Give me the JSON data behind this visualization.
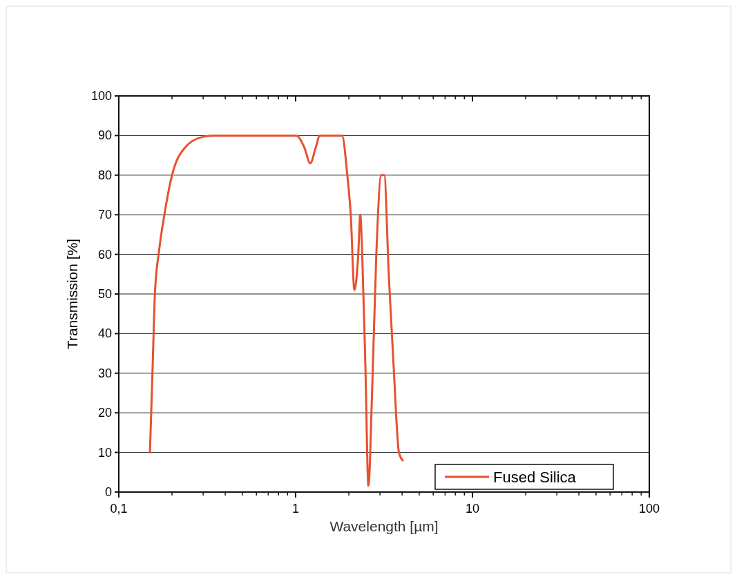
{
  "chart_data": {
    "type": "line",
    "xlabel": "Wavelength [µm]",
    "ylabel": "Transmission [%]",
    "log": "x",
    "grid": "y",
    "legend": "bottom right",
    "line_style": "solid",
    "marker": "none",
    "xlim": [
      0.1,
      100
    ],
    "xticks": [
      {
        "value": 0.1,
        "label": "0,1"
      },
      1,
      10,
      100
    ],
    "ylim": [
      0,
      100
    ],
    "yticks": [
      0,
      10,
      20,
      30,
      40,
      50,
      60,
      70,
      80,
      90,
      100
    ],
    "series": [
      {
        "name": "Fused Silica",
        "color": "#e8502f",
        "x": [
          0.15,
          0.155,
          0.16,
          0.169,
          0.181,
          0.2,
          0.235,
          0.3,
          0.35,
          1.0,
          1.03,
          1.12,
          1.21,
          1.3,
          1.37,
          1.83,
          1.96,
          2.05,
          2.15,
          2.26,
          2.32,
          2.38,
          2.48,
          2.58,
          2.71,
          2.86,
          3.05,
          3.17,
          3.37,
          3.58,
          3.84,
          4.03
        ],
        "values": [
          10,
          30,
          50,
          61,
          70,
          80,
          86.8,
          89.7,
          90,
          90,
          89.8,
          87,
          83,
          87,
          90,
          90,
          80,
          70,
          51,
          60,
          70,
          60,
          32,
          1.6,
          26,
          60,
          80,
          80,
          54,
          32,
          10,
          8
        ]
      }
    ]
  }
}
